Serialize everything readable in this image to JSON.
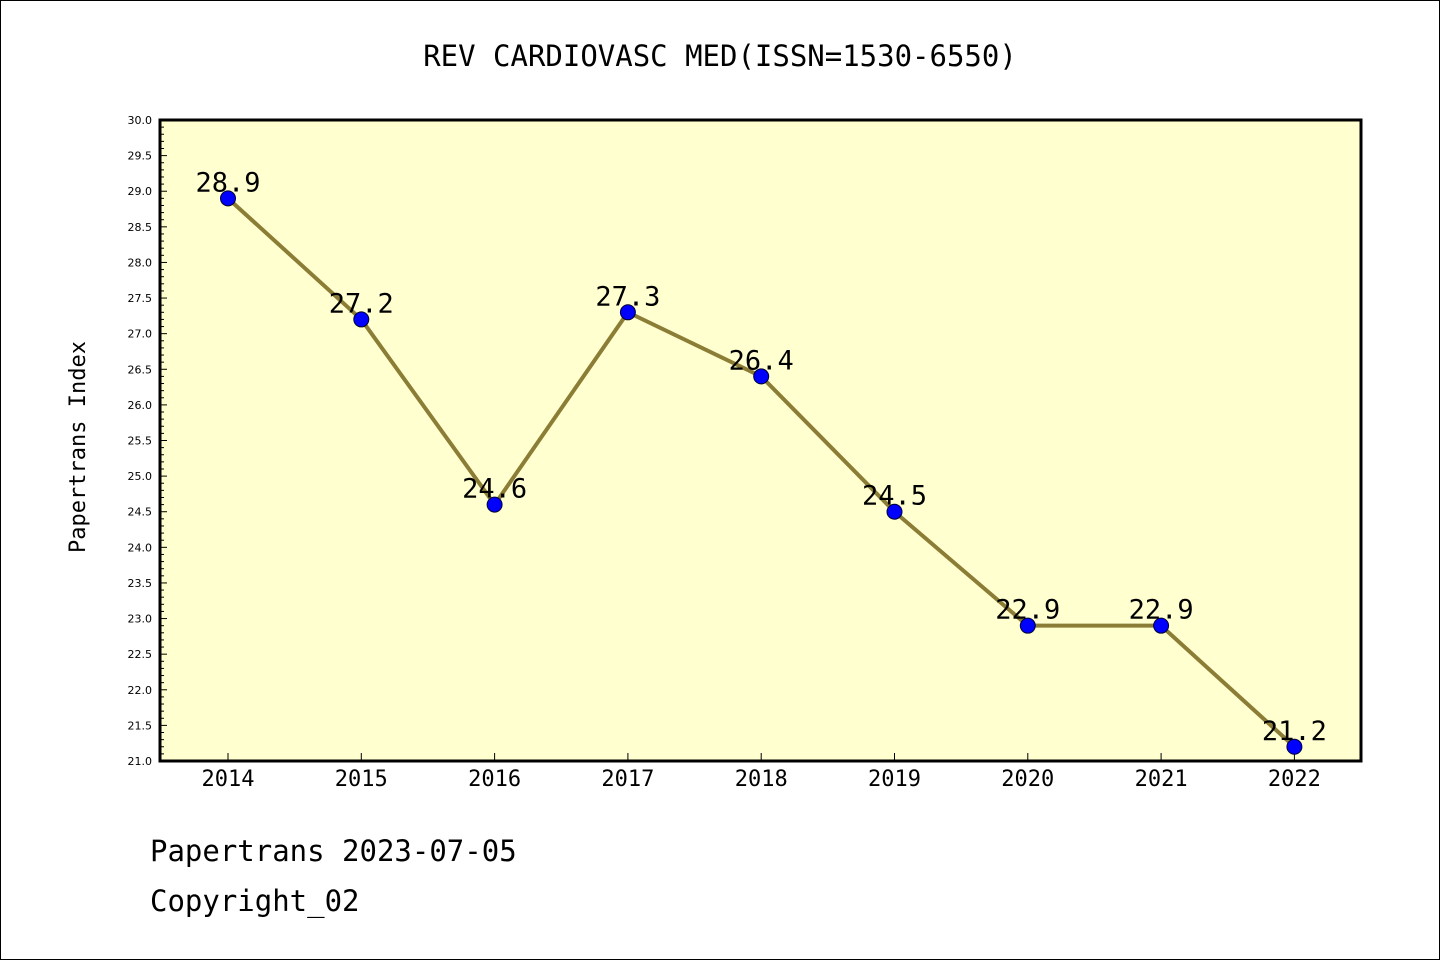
{
  "chart_data": {
    "type": "line",
    "title": "REV CARDIOVASC MED(ISSN=1530-6550)",
    "xlabel": "",
    "ylabel": "Papertrans Index",
    "categories": [
      "2014",
      "2015",
      "2016",
      "2017",
      "2018",
      "2019",
      "2020",
      "2021",
      "2022"
    ],
    "series": [
      {
        "values": [
          28.9,
          27.2,
          24.6,
          27.3,
          26.4,
          24.5,
          22.9,
          22.9,
          21.2
        ],
        "data_labels": [
          "28.9",
          "27.2",
          "24.6",
          "27.3",
          "26.4",
          "24.5",
          "22.9",
          "22.9",
          "21.2"
        ]
      }
    ],
    "ylim": [
      21.0,
      30.0
    ],
    "y_ticks": [
      "21.0",
      "21.5",
      "22.0",
      "22.5",
      "23.0",
      "23.5",
      "24.0",
      "24.5",
      "25.0",
      "25.5",
      "26.0",
      "26.5",
      "27.0",
      "27.5",
      "28.0",
      "28.5",
      "29.0",
      "29.5",
      "30.0"
    ],
    "grid": false,
    "legend": "none",
    "colors": {
      "plot_background": "#ffffd0",
      "line": "#8b7d35",
      "marker": "#0000ff",
      "axis": "#000000"
    }
  },
  "footer": {
    "line1": "Papertrans 2023-07-05",
    "line2": "Copyright_02"
  }
}
